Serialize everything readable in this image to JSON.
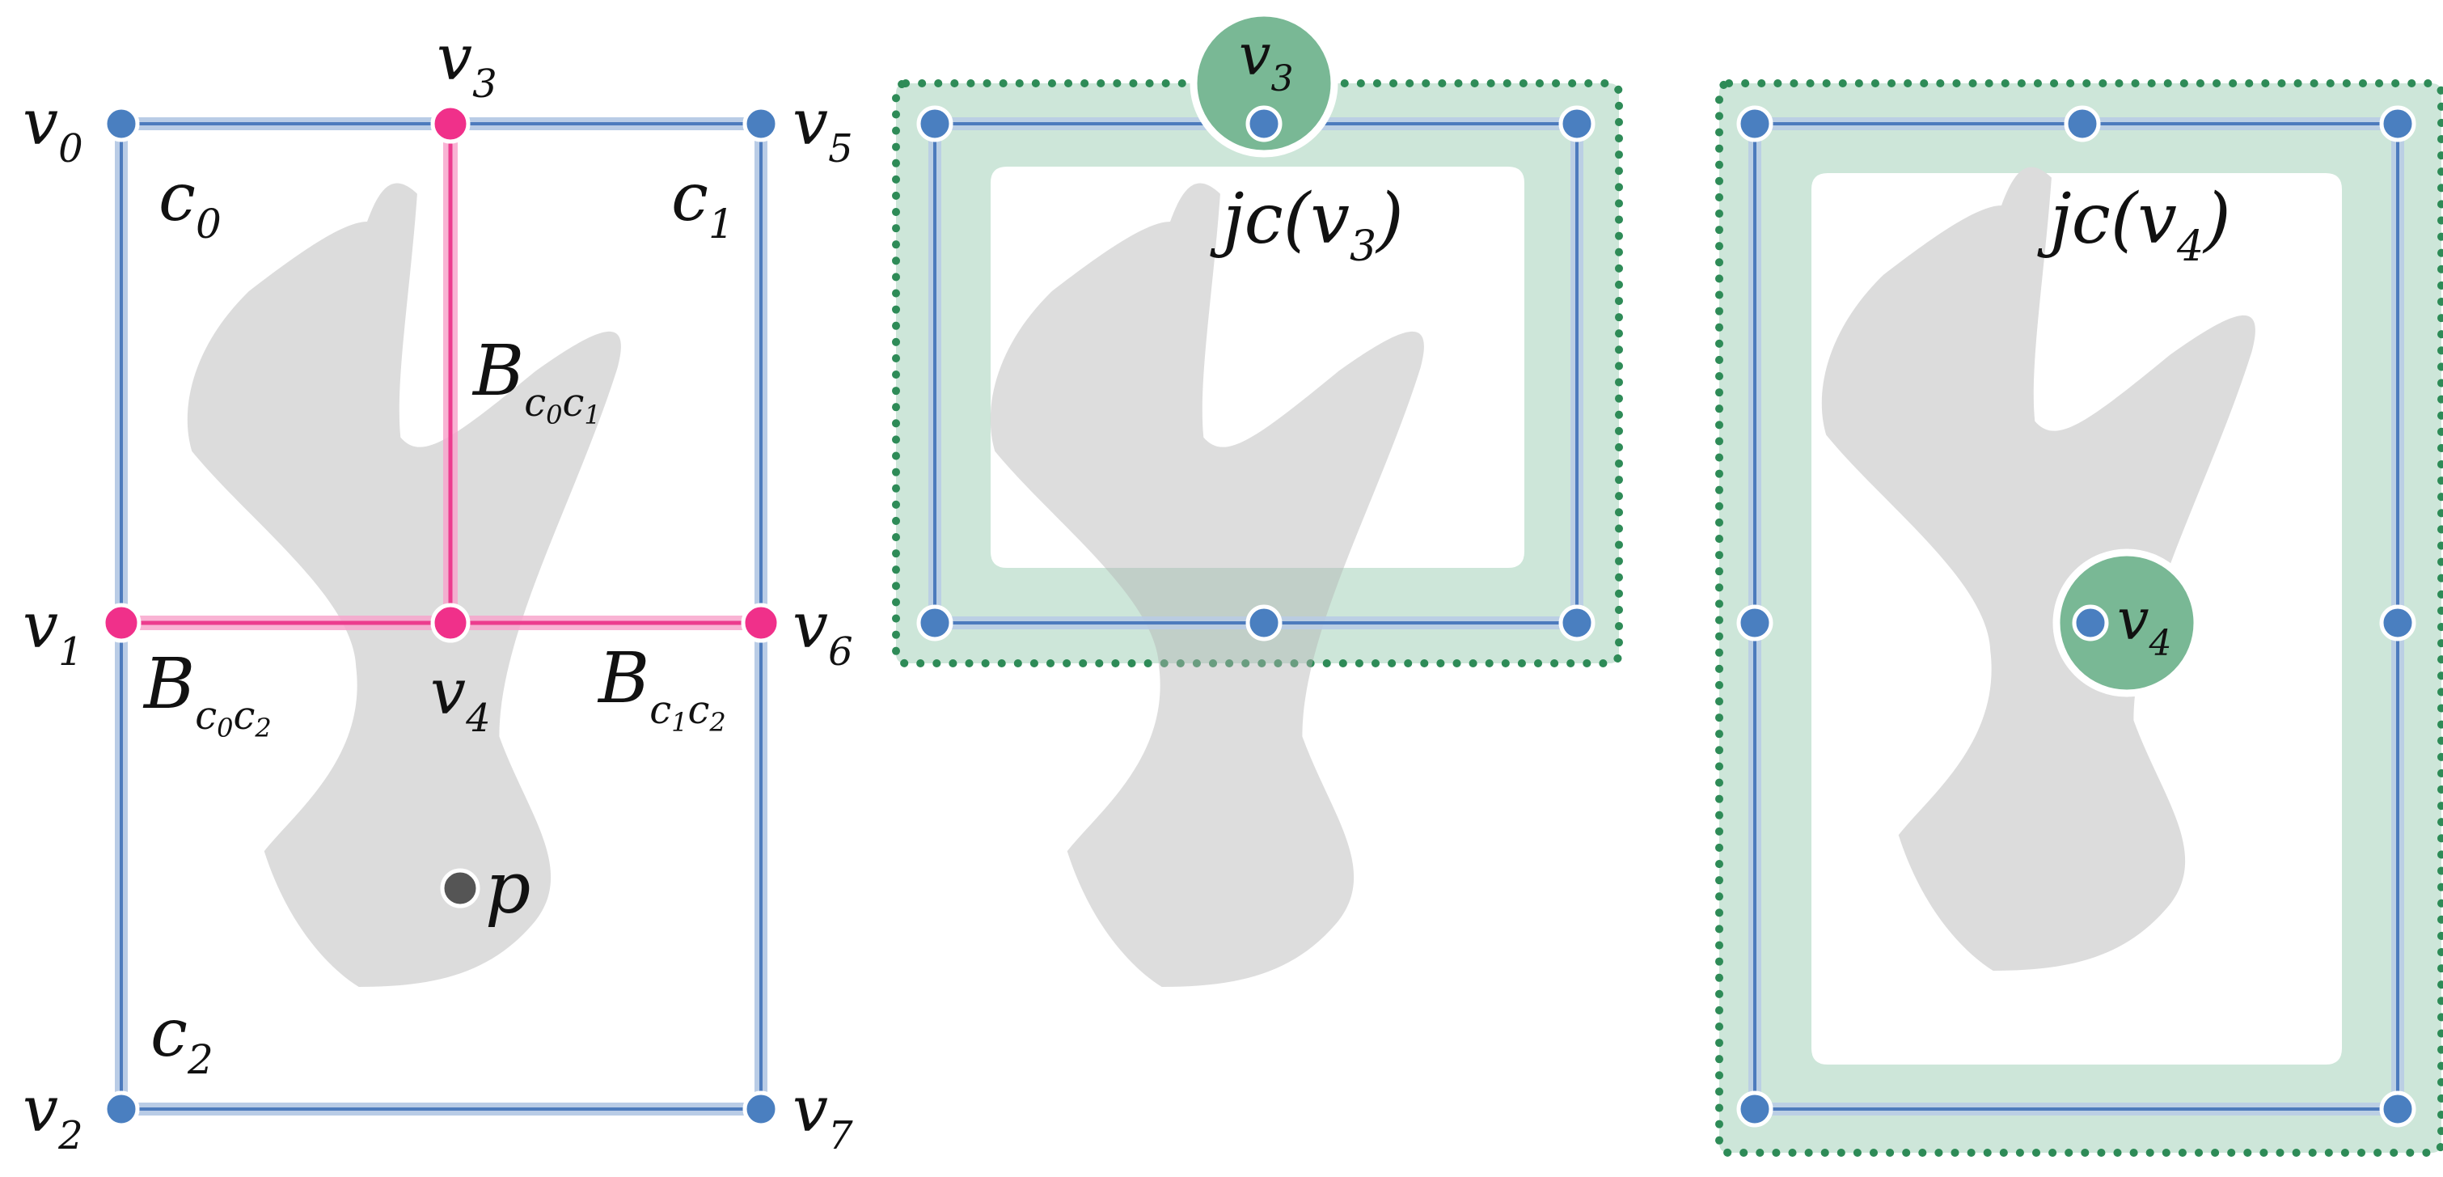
{
  "colors": {
    "shape": "#dcdcdc",
    "edge_light": "#b9cce6",
    "edge_dark": "#4d7bbd",
    "node": "#4a7fc0",
    "boundary_light": "#f8a6cd",
    "boundary_dark": "#ec3c8e",
    "boundary_node": "#f0308a",
    "region_fill": "#cde6d9",
    "region_dot": "#2e8b57",
    "junction": "#79b895",
    "point": "#555555"
  },
  "panel1": {
    "v0": {
      "base": "v",
      "sub": "0"
    },
    "v1": {
      "base": "v",
      "sub": "1"
    },
    "v2": {
      "base": "v",
      "sub": "2"
    },
    "v3": {
      "base": "v",
      "sub": "3"
    },
    "v4": {
      "base": "v",
      "sub": "4"
    },
    "v5": {
      "base": "v",
      "sub": "5"
    },
    "v6": {
      "base": "v",
      "sub": "6"
    },
    "v7": {
      "base": "v",
      "sub": "7"
    },
    "c0": {
      "base": "c",
      "sub": "0"
    },
    "c1": {
      "base": "c",
      "sub": "1"
    },
    "c2": {
      "base": "c",
      "sub": "2"
    },
    "b_c0c1": {
      "base": "B",
      "s1": "c",
      "s1n": "0",
      "s2": "c",
      "s2n": "1"
    },
    "b_c0c2": {
      "base": "B",
      "s1": "c",
      "s1n": "0",
      "s2": "c",
      "s2n": "2"
    },
    "b_c1c2": {
      "base": "B",
      "s1": "c",
      "s1n": "1",
      "s2": "c",
      "s2n": "2"
    },
    "p": "p"
  },
  "panel2": {
    "junction_label": {
      "base": "v",
      "sub": "3"
    },
    "region_label": {
      "pre": "jc(v",
      "sub": "3",
      "post": ")"
    }
  },
  "panel3": {
    "junction_label": {
      "base": "v",
      "sub": "4"
    },
    "region_label": {
      "pre": "jc(v",
      "sub": "4",
      "post": ")"
    }
  }
}
